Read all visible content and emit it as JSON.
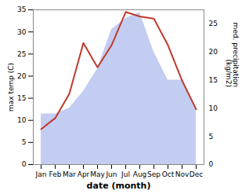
{
  "chart_data": {
    "type": "line",
    "categories": [
      "Jan",
      "Feb",
      "Mar",
      "Apr",
      "May",
      "Jun",
      "Jul",
      "Aug",
      "Sep",
      "Oct",
      "Nov",
      "Dec"
    ],
    "series": [
      {
        "type": "area",
        "axis": "y2",
        "color": "#b8c4ee",
        "values": [
          9,
          9,
          10,
          13,
          17,
          24,
          26,
          27,
          20,
          15,
          15,
          10
        ]
      },
      {
        "type": "line",
        "color": "#c0392b",
        "values": [
          8,
          10.5,
          16,
          27.5,
          22,
          27,
          34.5,
          33.5,
          33,
          27,
          19,
          12.5
        ]
      }
    ],
    "xlabel": "date (month)",
    "ylabel": "max temp (C)",
    "y2label": "med. precipitation\n(kg/m2)",
    "ylim": [
      0,
      35
    ],
    "yticks": [
      0,
      5,
      10,
      15,
      20,
      25,
      30,
      35
    ],
    "y2lim": [
      0,
      27.5
    ],
    "y2ticks": [
      0,
      5,
      10,
      15,
      20,
      25
    ]
  }
}
